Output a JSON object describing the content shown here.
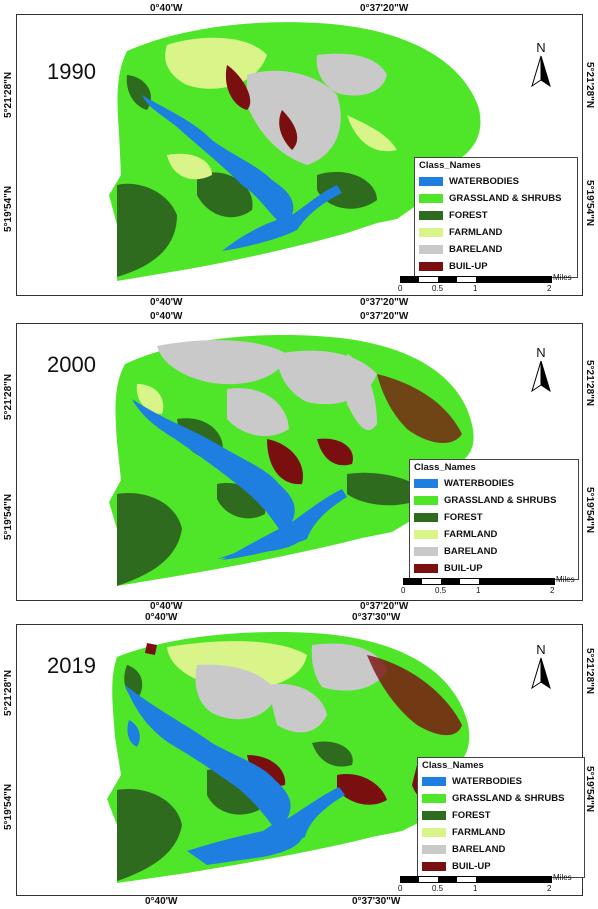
{
  "panels": [
    {
      "year": "1990",
      "top_coords": [
        "0°40'W",
        "0°37'20\"W"
      ],
      "bottom_coords": [
        "0°40'W",
        "0°37'20\"W"
      ],
      "left_coords": [
        "5°21'28\"N",
        "5°19'54\"N"
      ],
      "right_coords": [
        "5°21'28\"N",
        "5°19'54\"N"
      ]
    },
    {
      "year": "2000",
      "top_coords": [
        "0°40'W",
        "0°37'20\"W"
      ],
      "bottom_coords": [
        "0°40'W",
        "0°37'20\"W"
      ],
      "left_coords": [
        "5°21'28\"N",
        "5°19'54\"N"
      ],
      "right_coords": [
        "5°21'28\"N",
        "5°19'54\"N"
      ]
    },
    {
      "year": "2019",
      "top_coords": [
        "0°40'W",
        "0°37'30\"W"
      ],
      "bottom_coords": [
        "0°40'W",
        "0°37'30\"W"
      ],
      "left_coords": [
        "5°21'28\"N",
        "5°19'54\"N"
      ],
      "right_coords": [
        "5°21'28\"N",
        "5°19'54\"N"
      ]
    }
  ],
  "legend": {
    "title": "Class_Names",
    "classes": [
      {
        "label": "WATERBODIES",
        "color": "#1f7fe0"
      },
      {
        "label": "GRASSLAND & SHRUBS",
        "color": "#4fe62a"
      },
      {
        "label": "FOREST",
        "color": "#2f6b1f"
      },
      {
        "label": "FARMLAND",
        "color": "#d9f58a"
      },
      {
        "label": "BARELAND",
        "color": "#c9c9c9"
      },
      {
        "label": "BUIL-UP",
        "color": "#7a0f0f"
      }
    ]
  },
  "north_arrow": {
    "label": "N"
  },
  "scale_bar": {
    "ticks": [
      "0",
      "0.5",
      "1",
      "2"
    ],
    "unit": "Miles"
  }
}
